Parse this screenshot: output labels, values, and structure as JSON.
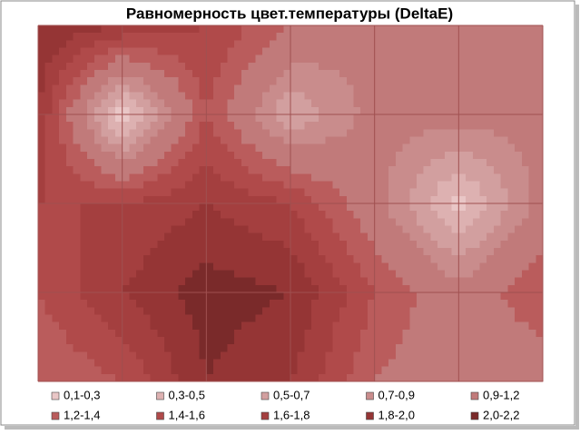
{
  "chart_data": {
    "type": "contour",
    "title": "Равномерность цвет.температуры (DeltaE)",
    "z": [
      [
        2.0,
        1.8,
        1.6,
        1.2,
        0.9,
        0.9,
        0.9
      ],
      [
        1.8,
        0.1,
        1.4,
        0.5,
        1.0,
        1.0,
        1.0
      ],
      [
        1.6,
        1.6,
        1.8,
        1.6,
        1.0,
        0.2,
        1.0
      ],
      [
        1.4,
        1.8,
        2.1,
        2.0,
        1.4,
        1.0,
        1.4
      ],
      [
        1.2,
        1.4,
        2.0,
        1.8,
        1.2,
        1.0,
        1.0
      ]
    ],
    "bands": [
      {
        "name": "0,1-0,3",
        "min": 0.1,
        "max": 0.3,
        "color": "#e9c6c6"
      },
      {
        "name": "0,3-0,5",
        "min": 0.3,
        "max": 0.5,
        "color": "#ddb1b1"
      },
      {
        "name": "0,5-0,7",
        "min": 0.5,
        "max": 0.7,
        "color": "#d29f9f"
      },
      {
        "name": "0,7-0,9",
        "min": 0.7,
        "max": 0.9,
        "color": "#c98c8c"
      },
      {
        "name": "0,9-1,2",
        "min": 0.9,
        "max": 1.2,
        "color": "#c17a7a"
      },
      {
        "name": "1,2-1,4",
        "min": 1.2,
        "max": 1.4,
        "color": "#ba5c5c"
      },
      {
        "name": "1,4-1,6",
        "min": 1.4,
        "max": 1.6,
        "color": "#b04a4a"
      },
      {
        "name": "1,6-1,8",
        "min": 1.6,
        "max": 1.8,
        "color": "#a43f3f"
      },
      {
        "name": "1,8-2,0",
        "min": 1.8,
        "max": 2.0,
        "color": "#953535"
      },
      {
        "name": "2,0-2,2",
        "min": 2.0,
        "max": 2.2,
        "color": "#7a2a2a"
      }
    ],
    "grid": true
  }
}
